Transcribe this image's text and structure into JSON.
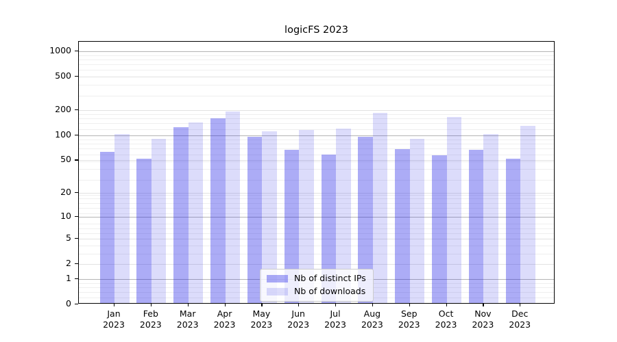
{
  "chart_data": {
    "type": "bar",
    "title": "logicFS 2023",
    "y_scale": "log1p",
    "ylim": [
      0,
      1300
    ],
    "grid": true,
    "legend_position": "lower center",
    "categories": [
      "Jan",
      "Feb",
      "Mar",
      "Apr",
      "May",
      "Jun",
      "Jul",
      "Aug",
      "Sep",
      "Oct",
      "Nov",
      "Dec"
    ],
    "x_tick_year": "2023",
    "y_ticks": [
      "1000",
      "500",
      "200",
      "100",
      "50",
      "20",
      "10",
      "5",
      "2",
      "1",
      "0"
    ],
    "series": [
      {
        "name": "Nb of distinct IPs",
        "color": "rgba(30,30,230,0.37)",
        "values": [
          61,
          50,
          120,
          153,
          92,
          64,
          57,
          92,
          66,
          55,
          64,
          50
        ]
      },
      {
        "name": "Nb of downloads",
        "color": "rgba(30,30,230,0.155)",
        "values": [
          100,
          88,
          137,
          185,
          108,
          111,
          115,
          179,
          88,
          160,
          100,
          124
        ]
      }
    ],
    "gridline_colors": {
      "decade": "#b4b4b4",
      "labeled": "#e2e2e2",
      "minor": "#efefef"
    }
  }
}
